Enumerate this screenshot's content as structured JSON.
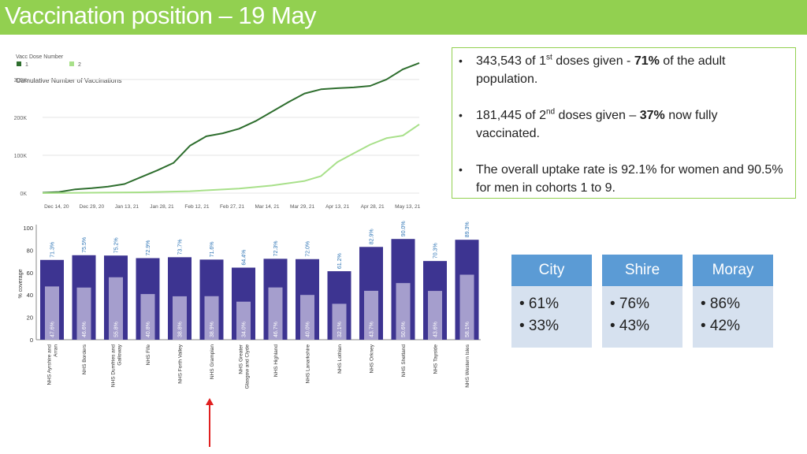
{
  "title": "Vaccination position – 19 May",
  "colors": {
    "title_bar": "#92d050",
    "dose1": "#2e6e2e",
    "dose2": "#a8e08a",
    "bar_total": "#3d3491",
    "bar_second": "#a59ecd",
    "card_head": "#5b9bd5",
    "card_body": "#d6e1ef",
    "arrow": "#e02020"
  },
  "chart_data": [
    {
      "type": "line",
      "title": "Cumulative Number of Vaccinations",
      "legend_title": "Vacc Dose Number",
      "legend_position": "top-left",
      "x_ticks": [
        "Dec 14, 20",
        "Dec 29, 20",
        "Jan 13, 21",
        "Jan 28, 21",
        "Feb 12, 21",
        "Feb 27, 21",
        "Mar 14, 21",
        "Mar 29, 21",
        "Apr 13, 21",
        "Apr 28, 21",
        "May 13, 21"
      ],
      "y_ticks": [
        "0K",
        "100K",
        "200K",
        "300K"
      ],
      "ylim": [
        0,
        360000
      ],
      "grid": true,
      "series": [
        {
          "name": "1",
          "x": [
            "2020-12-08",
            "2020-12-15",
            "2020-12-22",
            "2020-12-29",
            "2021-01-05",
            "2021-01-12",
            "2021-01-19",
            "2021-01-26",
            "2021-02-02",
            "2021-02-09",
            "2021-02-16",
            "2021-02-23",
            "2021-03-02",
            "2021-03-09",
            "2021-03-16",
            "2021-03-23",
            "2021-03-30",
            "2021-04-06",
            "2021-04-13",
            "2021-04-20",
            "2021-04-27",
            "2021-05-04",
            "2021-05-11",
            "2021-05-18"
          ],
          "values": [
            1000,
            3000,
            10000,
            13000,
            17000,
            24000,
            42000,
            60000,
            80000,
            125000,
            150000,
            158000,
            170000,
            190000,
            215000,
            240000,
            263000,
            274000,
            277000,
            279000,
            283000,
            300000,
            327000,
            343543
          ]
        },
        {
          "name": "2",
          "x": [
            "2020-12-08",
            "2020-12-29",
            "2021-01-19",
            "2021-02-09",
            "2021-03-02",
            "2021-03-16",
            "2021-03-30",
            "2021-04-06",
            "2021-04-13",
            "2021-04-20",
            "2021-04-27",
            "2021-05-04",
            "2021-05-11",
            "2021-05-18"
          ],
          "values": [
            0,
            1000,
            2000,
            5000,
            12000,
            20000,
            32000,
            45000,
            82000,
            105000,
            128000,
            145000,
            152000,
            181445
          ]
        }
      ]
    },
    {
      "type": "bar",
      "ylabel": "% coverage",
      "ylim": [
        0,
        100
      ],
      "y_ticks": [
        "0",
        "20",
        "40",
        "60",
        "80",
        "100"
      ],
      "categories": [
        "NHS Ayrshire and Arran",
        "NHS Borders",
        "NHS Dumfries and Galloway",
        "NHS Fife",
        "NHS Forth Valley",
        "NHS Grampian",
        "NHS Greater Glasgow and Clyde",
        "NHS Highland",
        "NHS Lanarkshire",
        "NHS Lothian",
        "NHS Orkney",
        "NHS Shetland",
        "NHS Tayside",
        "NHS Western Isles"
      ],
      "category_lines": [
        [
          "NHS Ayrshire and",
          "Arran"
        ],
        [
          "NHS Borders"
        ],
        [
          "NHS Dumfries and",
          "Galloway"
        ],
        [
          "NHS Fife"
        ],
        [
          "NHS Forth Valley"
        ],
        [
          "NHS Grampian"
        ],
        [
          "NHS Greater",
          "Glasgow and Clyde"
        ],
        [
          "NHS Highland"
        ],
        [
          "NHS Lanarkshire"
        ],
        [
          "NHS Lothian"
        ],
        [
          "NHS Orkney"
        ],
        [
          "NHS Shetland"
        ],
        [
          "NHS Tayside"
        ],
        [
          "NHS Western Isles"
        ]
      ],
      "series": [
        {
          "values": [
            71.3,
            75.5,
            75.2,
            72.9,
            73.7,
            71.6,
            64.4,
            72.3,
            72.0,
            61.2,
            82.9,
            90.0,
            70.3,
            89.3
          ],
          "labels": [
            "71.3%",
            "75.5%",
            "75.2%",
            "72.9%",
            "73.7%",
            "71.6%",
            "64.4%",
            "72.3%",
            "72.0%",
            "61.2%",
            "82.9%",
            "90.0%",
            "70.3%",
            "89.3%"
          ]
        },
        {
          "values": [
            47.6,
            46.6,
            55.8,
            40.8,
            38.8,
            38.9,
            34.0,
            46.7,
            40.0,
            32.1,
            43.7,
            50.6,
            43.6,
            58.1
          ],
          "labels": [
            "47.6%",
            "46.6%",
            "55.8%",
            "40.8%",
            "38.8%",
            "38.9%",
            "34.0%",
            "46.7%",
            "40.0%",
            "32.1%",
            "43.7%",
            "50.6%",
            "43.6%",
            "58.1%"
          ]
        }
      ]
    }
  ],
  "info": {
    "b1_pre": "343,543 of 1",
    "b1_sup": "st",
    "b1_mid": " doses given - ",
    "b1_bold": "71%",
    "b1_post": " of the adult population.",
    "b2_pre": "181,445 of 2",
    "b2_sup": "nd",
    "b2_mid": " doses given – ",
    "b2_bold": "37%",
    "b2_post": " now fully vaccinated.",
    "b3": "The overall uptake rate is 92.1% for women and 90.5% for men in cohorts 1 to 9.",
    "bullet": "•"
  },
  "cards": [
    {
      "name": "City",
      "r1": "• 61%",
      "r2": "• 33%"
    },
    {
      "name": "Shire",
      "r1": "• 76%",
      "r2": "• 43%"
    },
    {
      "name": "Moray",
      "r1": "• 86%",
      "r2": "• 42%"
    }
  ]
}
